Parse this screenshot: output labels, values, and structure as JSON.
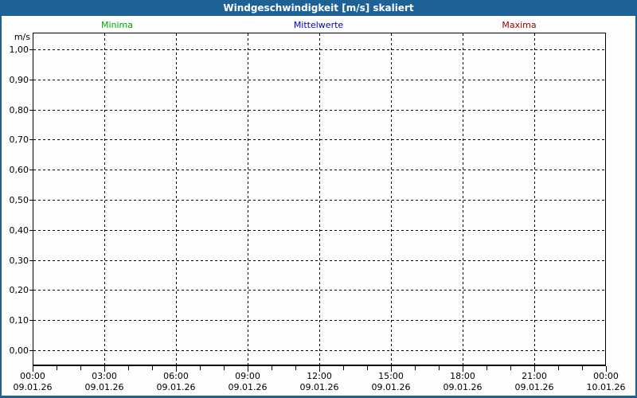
{
  "title": "Windgeschwindigkeit [m/s] skaliert",
  "colors": {
    "frame_blue": "#1d6195",
    "minima_green": "#00a800",
    "mittelwerte_blue": "#0000c8",
    "maxima_red": "#a00000",
    "background": "#fdfefd",
    "axis_black": "#000000"
  },
  "legend": [
    {
      "label": "Minima",
      "color": "#00a800"
    },
    {
      "label": "Mittelwerte",
      "color": "#0000c8"
    },
    {
      "label": "Maxima",
      "color": "#a00000"
    }
  ],
  "y_axis": {
    "unit": "m/s",
    "tick_labels": [
      "1,00",
      "0,90",
      "0,80",
      "0,70",
      "0,60",
      "0,50",
      "0,40",
      "0,30",
      "0,20",
      "0,10",
      "0,00"
    ]
  },
  "x_axis": {
    "ticks": [
      {
        "time": "00:00",
        "date": "09.01.26"
      },
      {
        "time": "03:00",
        "date": "09.01.26"
      },
      {
        "time": "06:00",
        "date": "09.01.26"
      },
      {
        "time": "09:00",
        "date": "09.01.26"
      },
      {
        "time": "12:00",
        "date": "09.01.26"
      },
      {
        "time": "15:00",
        "date": "09.01.26"
      },
      {
        "time": "18:00",
        "date": "09.01.26"
      },
      {
        "time": "21:00",
        "date": "09.01.26"
      },
      {
        "time": "00:00",
        "date": "10.01.26"
      }
    ]
  },
  "chart_data": {
    "type": "line",
    "title": "Windgeschwindigkeit [m/s] skaliert",
    "xlabel": "",
    "ylabel": "m/s",
    "ylim": [
      0.0,
      1.0
    ],
    "ytick_step": 0.1,
    "ytick_labels": [
      "1,00",
      "0,90",
      "0,80",
      "0,70",
      "0,60",
      "0,50",
      "0,40",
      "0,30",
      "0,20",
      "0,10",
      "0,00"
    ],
    "xlim": [
      "09.01.26 00:00",
      "10.01.26 00:00"
    ],
    "xtick_labels": [
      "00:00\n09.01.26",
      "03:00\n09.01.26",
      "06:00\n09.01.26",
      "09:00\n09.01.26",
      "12:00\n09.01.26",
      "15:00\n09.01.26",
      "18:00\n09.01.26",
      "21:00\n09.01.26",
      "00:00\n10.01.26"
    ],
    "grid": true,
    "grid_style": "dashed",
    "legend_position": "top",
    "series": [
      {
        "name": "Minima",
        "color": "#00a800",
        "values": []
      },
      {
        "name": "Mittelwerte",
        "color": "#0000c8",
        "values": []
      },
      {
        "name": "Maxima",
        "color": "#a00000",
        "values": []
      }
    ],
    "note": "plot area is empty - no data points are drawn"
  }
}
